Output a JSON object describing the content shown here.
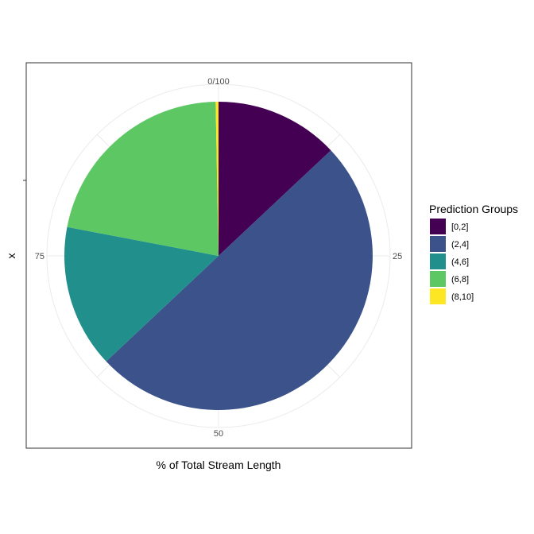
{
  "chart_data": {
    "type": "pie",
    "xlabel": "% of Total Stream Length",
    "ylabel": "x",
    "theta_ticks": [
      {
        "value": 0,
        "label": "0/100"
      },
      {
        "value": 25,
        "label": "25"
      },
      {
        "value": 50,
        "label": "50"
      },
      {
        "value": 75,
        "label": "75"
      }
    ],
    "legend": {
      "title": "Prediction Groups",
      "position": "right"
    },
    "series": [
      {
        "name": "[0,2]",
        "value": 13.0,
        "color": "#440154"
      },
      {
        "name": "(2,4]",
        "value": 50.0,
        "color": "#3B528B"
      },
      {
        "name": "(4,6]",
        "value": 15.0,
        "color": "#21908C"
      },
      {
        "name": "(6,8]",
        "value": 21.7,
        "color": "#5DC863"
      },
      {
        "name": "(8,10]",
        "value": 0.3,
        "color": "#FDE725"
      }
    ],
    "grid": true
  }
}
